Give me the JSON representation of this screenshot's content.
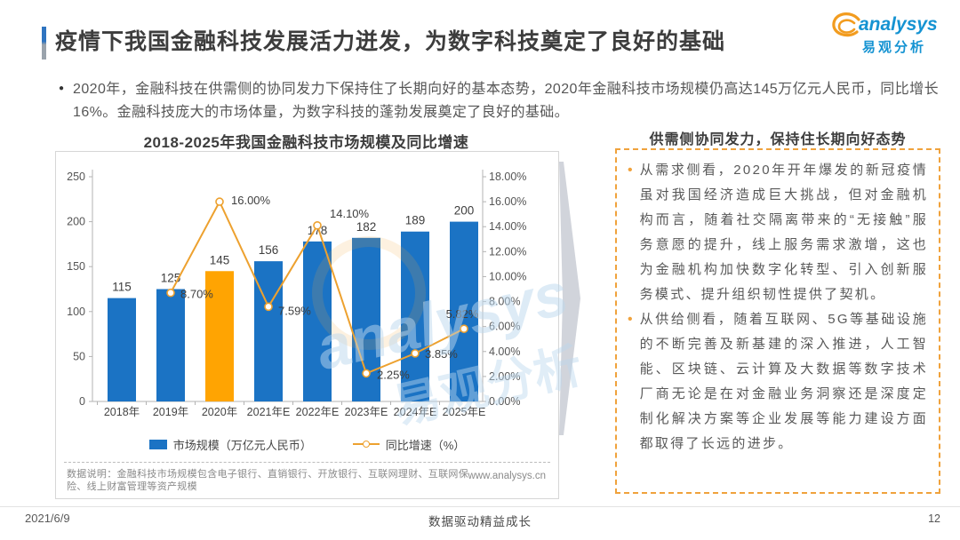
{
  "header": {
    "title": "疫情下我国金融科技发展活力迸发，为数字科技奠定了良好的基础",
    "logo_en": "analysys",
    "logo_cn": "易观分析"
  },
  "summary": {
    "text": "2020年，金融科技在供需侧的协同发力下保持住了长期向好的基本态势，2020年金融科技市场规模仍高达145万亿元人民币，同比增长16%。金融科技庞大的市场体量，为数字科技的蓬勃发展奠定了良好的基础。"
  },
  "chart": {
    "title": "2018-2025年我国金融科技市场规模及同比增速",
    "footnote": "数据说明：金融科技市场规模包含电子银行、直销银行、开放银行、互联网理财、互联网保险、线上财富管理等资产规模",
    "source_url": "www.analysys.cn"
  },
  "chart_data": {
    "type": "bar+line",
    "title": "2018-2025年我国金融科技市场规模及同比增速",
    "categories": [
      "2018年",
      "2019年",
      "2020年",
      "2021年E",
      "2022年E",
      "2023年E",
      "2024年E",
      "2025年E"
    ],
    "series": [
      {
        "name": "市场规模（万亿元人民币）",
        "type": "bar",
        "values": [
          115,
          125,
          145,
          156,
          178,
          182,
          189,
          200
        ],
        "labels": [
          "115",
          "125",
          "145",
          "156",
          "178",
          "182",
          "189",
          "200"
        ]
      },
      {
        "name": "同比增速（%）",
        "type": "line",
        "values": [
          null,
          8.7,
          16.0,
          7.59,
          14.1,
          2.25,
          3.85,
          5.82
        ],
        "labels": [
          "",
          "8.70%",
          "16.00%",
          "7.59%",
          "14.10%",
          "2.25%",
          "3.85%",
          "5.82%"
        ]
      }
    ],
    "left_axis": {
      "min": 0,
      "max": 250,
      "step": 50,
      "ticks": [
        "0",
        "50",
        "100",
        "150",
        "200",
        "250"
      ]
    },
    "right_axis": {
      "min": 0,
      "max": 18,
      "step": 2,
      "ticks": [
        "0.00%",
        "2.00%",
        "4.00%",
        "6.00%",
        "8.00%",
        "10.00%",
        "12.00%",
        "14.00%",
        "16.00%",
        "18.00%"
      ]
    },
    "highlight_index": 2,
    "bar_color": "#1b73c4",
    "highlight_color": "#ffa402",
    "line_color": "#eda12f",
    "grid": false,
    "legend_position": "bottom"
  },
  "panel": {
    "title": "供需侧协同发力，保持住长期向好态势",
    "bullets": [
      "从需求侧看，2020年开年爆发的新冠疫情虽对我国经济造成巨大挑战，但对金融机构而言，随着社交隔离带来的“无接触”服务意愿的提升，线上服务需求激增，这也为金融机构加快数字化转型、引入创新服务模式、提升组织韧性提供了契机。",
      "从供给侧看，随着互联网、5G等基础设施的不断完善及新基建的深入推进，人工智能、区块链、云计算及大数据等数字技术厂商无论是在对金融业务洞察还是深度定制化解决方案等企业发展等能力建设方面都取得了长远的进步。"
    ]
  },
  "watermark": {
    "text_en": "analysys",
    "text_cn": "易观分析"
  },
  "footer": {
    "date": "2021/6/9",
    "motto": "数据驱动精益成长",
    "page": "12"
  }
}
